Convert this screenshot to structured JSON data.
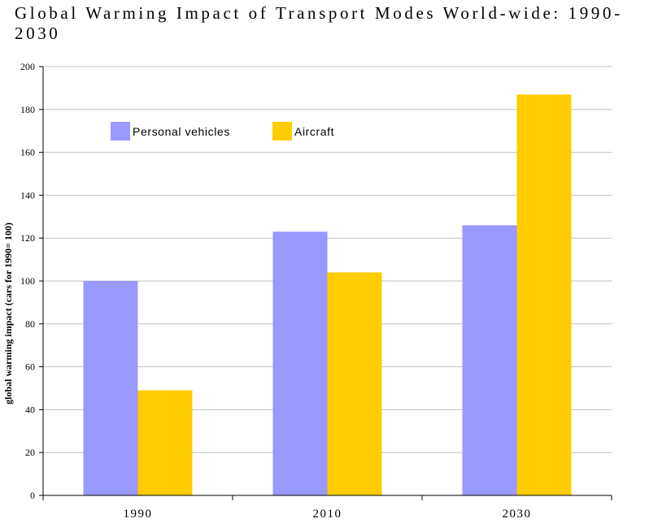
{
  "chart_data": {
    "type": "bar",
    "title": "Global Warming Impact of Transport Modes World-wide: 1990-2030",
    "xlabel": "",
    "ylabel": "global warming impact (cars for 1990= 100)",
    "categories": [
      "1990",
      "2010",
      "2030"
    ],
    "ylim": [
      0,
      200
    ],
    "yticks": [
      0,
      20,
      40,
      60,
      80,
      100,
      120,
      140,
      160,
      180,
      200
    ],
    "grid": true,
    "legend_position": "top-left",
    "series": [
      {
        "name": "Personal vehicles",
        "color": "#9999ff",
        "values": [
          100,
          123,
          126
        ]
      },
      {
        "name": "Aircraft",
        "color": "#ffcc00",
        "values": [
          49,
          104,
          187
        ]
      }
    ]
  }
}
